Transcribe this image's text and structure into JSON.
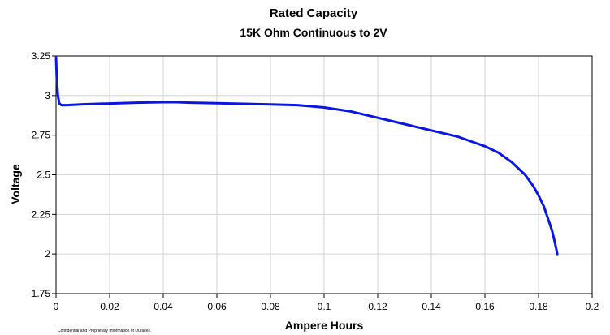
{
  "footnote": "Confidential and Proprietary Information of Duracell.",
  "chart_data": {
    "type": "line",
    "title": "Rated Capacity",
    "subtitle": "15K Ohm Continuous to 2V",
    "xlabel": "Ampere Hours",
    "ylabel": "Voltage",
    "xlim": [
      0,
      0.2
    ],
    "ylim": [
      1.75,
      3.25
    ],
    "xticks": [
      0,
      0.02,
      0.04,
      0.06,
      0.08,
      0.1,
      0.12,
      0.14,
      0.16,
      0.18,
      0.2
    ],
    "xtick_labels": [
      "0",
      "0.02",
      "0.04",
      "0.06",
      "0.08",
      "0.1",
      "0.12",
      "0.14",
      "0.16",
      "0.18",
      "0.2"
    ],
    "yticks": [
      1.75,
      2,
      2.25,
      2.5,
      2.75,
      3,
      3.25
    ],
    "ytick_labels": [
      "1.75",
      "2",
      "2.25",
      "2.5",
      "2.75",
      "3",
      "3.25"
    ],
    "grid": true,
    "series_color": "#0a16e6",
    "series": [
      {
        "x": [
          0,
          0.0003,
          0.0007,
          0.0012,
          0.002,
          0.004,
          0.01,
          0.02,
          0.03,
          0.04,
          0.045,
          0.05,
          0.06,
          0.07,
          0.08,
          0.09,
          0.1,
          0.11,
          0.12,
          0.13,
          0.14,
          0.15,
          0.155,
          0.16,
          0.165,
          0.17,
          0.175,
          0.178,
          0.18,
          0.182,
          0.184,
          0.185,
          0.186,
          0.1865,
          0.187
        ],
        "y": [
          3.24,
          3.1,
          3.0,
          2.95,
          2.94,
          2.94,
          2.945,
          2.95,
          2.955,
          2.958,
          2.958,
          2.955,
          2.952,
          2.948,
          2.944,
          2.94,
          2.925,
          2.9,
          2.86,
          2.82,
          2.78,
          2.74,
          2.71,
          2.68,
          2.64,
          2.58,
          2.5,
          2.43,
          2.37,
          2.3,
          2.2,
          2.15,
          2.08,
          2.04,
          2.0
        ]
      }
    ]
  }
}
